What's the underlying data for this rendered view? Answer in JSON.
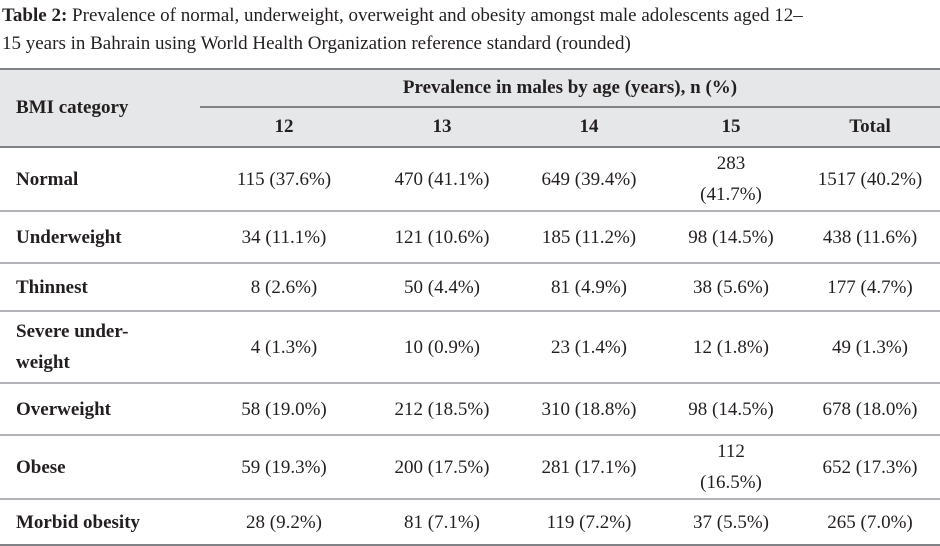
{
  "caption": {
    "label": "Table 2:",
    "text_line1": "Prevalence of normal, underweight, overweight and obesity amongst male adolescents aged 12–",
    "text_line2": "15 years in Bahrain using World Health Organization reference standard (rounded)"
  },
  "table": {
    "corner_header": "BMI category",
    "group_header": "Prevalence in males by age (years), n (%)",
    "age_headers": [
      "12",
      "13",
      "14",
      "15",
      "Total"
    ],
    "rows": [
      {
        "category": [
          "Normal"
        ],
        "cells": [
          [
            "115 (37.6%)"
          ],
          [
            "470 (41.1%)"
          ],
          [
            "649 (39.4%)"
          ],
          [
            "283",
            "(41.7%)"
          ],
          [
            "1517 (40.2%)"
          ]
        ]
      },
      {
        "category": [
          "Underweight"
        ],
        "cells": [
          [
            "34 (11.1%)"
          ],
          [
            "121 (10.6%)"
          ],
          [
            "185 (11.2%)"
          ],
          [
            "98 (14.5%)"
          ],
          [
            "438 (11.6%)"
          ]
        ]
      },
      {
        "category": [
          "Thinnest"
        ],
        "cells": [
          [
            "8 (2.6%)"
          ],
          [
            "50 (4.4%)"
          ],
          [
            "81 (4.9%)"
          ],
          [
            "38 (5.6%)"
          ],
          [
            "177 (4.7%)"
          ]
        ]
      },
      {
        "category": [
          "Severe under-",
          "weight"
        ],
        "cells": [
          [
            "4 (1.3%)"
          ],
          [
            "10 (0.9%)"
          ],
          [
            "23 (1.4%)"
          ],
          [
            "12 (1.8%)"
          ],
          [
            "49 (1.3%)"
          ]
        ]
      },
      {
        "category": [
          "Overweight"
        ],
        "cells": [
          [
            "58 (19.0%)"
          ],
          [
            "212 (18.5%)"
          ],
          [
            "310 (18.8%)"
          ],
          [
            "98 (14.5%)"
          ],
          [
            "678 (18.0%)"
          ]
        ]
      },
      {
        "category": [
          "Obese"
        ],
        "cells": [
          [
            "59 (19.3%)"
          ],
          [
            "200 (17.5%)"
          ],
          [
            "281 (17.1%)"
          ],
          [
            "112",
            "(16.5%)"
          ],
          [
            "652 (17.3%)"
          ]
        ]
      },
      {
        "category": [
          "Morbid obesity"
        ],
        "cells": [
          [
            "28 (9.2%)"
          ],
          [
            "81 (7.1%)"
          ],
          [
            "119 (7.2%)"
          ],
          [
            "37 (5.5%)"
          ],
          [
            "265 (7.0%)"
          ]
        ]
      }
    ]
  }
}
